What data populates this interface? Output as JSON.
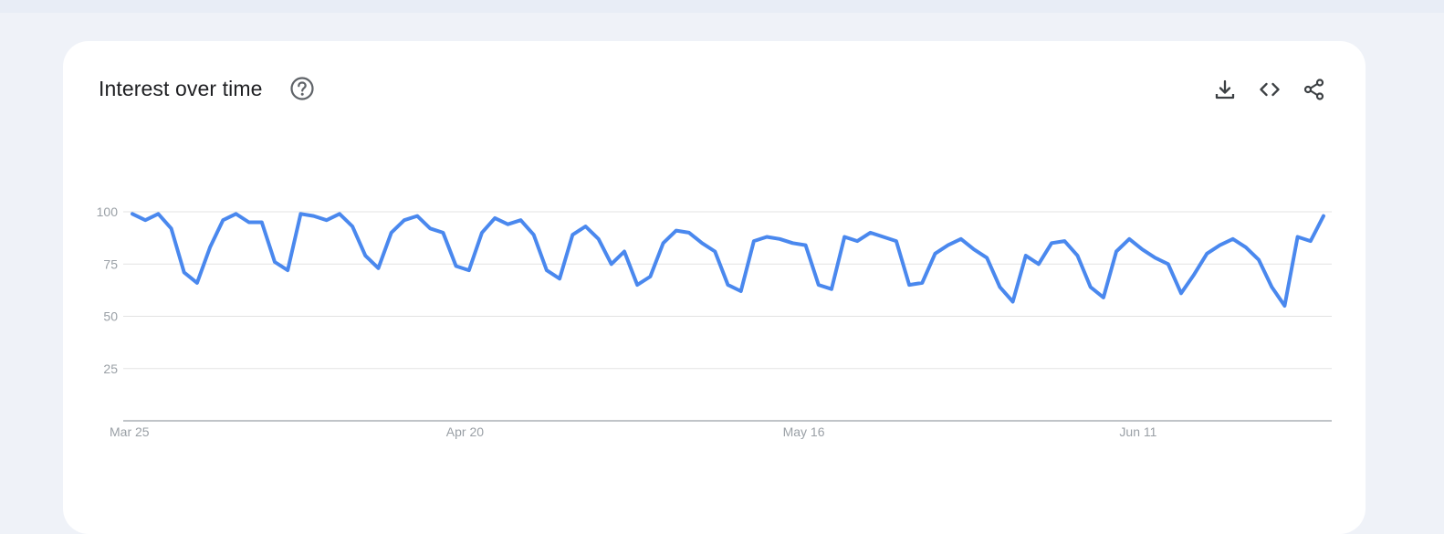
{
  "card": {
    "title": "Interest over time"
  },
  "icons": {
    "help": "help-circle-icon",
    "download": "download-icon",
    "embed": "code-embed-icon",
    "share": "share-icon"
  },
  "colors": {
    "line": "#4a88ee",
    "grid": "#e3e3e3",
    "axis": "#9aa0a6",
    "card_bg": "#ffffff",
    "page_bg": "#eff2f8"
  },
  "chart_data": {
    "type": "line",
    "title": "Interest over time",
    "xlabel": "",
    "ylabel": "",
    "ylim": [
      0,
      100
    ],
    "yticks": [
      25,
      50,
      75,
      100
    ],
    "x_ticks": [
      {
        "label": "Mar 25",
        "index": 0
      },
      {
        "label": "Apr 20",
        "index": 26
      },
      {
        "label": "May 16",
        "index": 52
      },
      {
        "label": "Jun 11",
        "index": 78
      }
    ],
    "grid": true,
    "legend": "none",
    "series": [
      {
        "values": [
          99,
          96,
          99,
          92,
          71,
          66,
          83,
          96,
          99,
          95,
          95,
          76,
          72,
          99,
          98,
          96,
          99,
          93,
          79,
          73,
          90,
          96,
          98,
          92,
          90,
          74,
          72,
          90,
          97,
          94,
          96,
          89,
          72,
          68,
          89,
          93,
          87,
          75,
          81,
          65,
          69,
          85,
          91,
          90,
          85,
          81,
          65,
          62,
          86,
          88,
          87,
          85,
          84,
          65,
          63,
          88,
          86,
          90,
          88,
          86,
          65,
          66,
          80,
          84,
          87,
          82,
          78,
          64,
          57,
          79,
          75,
          85,
          86,
          79,
          64,
          59,
          81,
          87,
          82,
          78,
          75,
          61,
          70,
          80,
          84,
          87,
          83,
          77,
          64,
          55,
          88,
          86,
          98
        ]
      }
    ]
  }
}
